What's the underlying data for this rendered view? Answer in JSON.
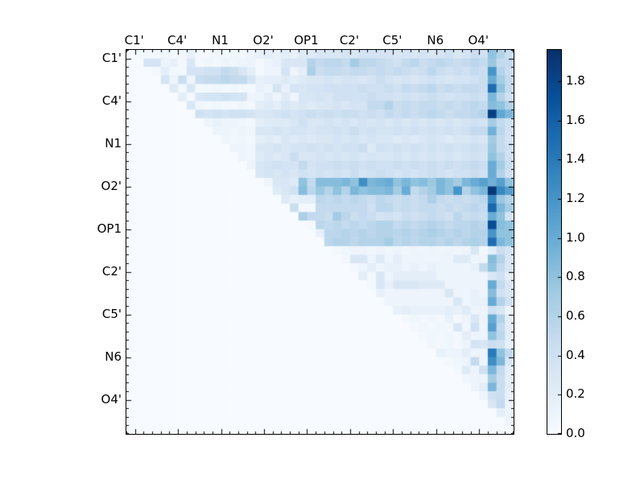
{
  "figure": {
    "kind": "matplotlib-style heatmap figure",
    "background": "#ffffff",
    "axes_border_color": "#000000",
    "text_color": "#000000"
  },
  "chart_data": {
    "type": "heatmap",
    "title": "",
    "xlabel": "",
    "ylabel": "",
    "n": 45,
    "group_size": 5,
    "x_tick_labels": [
      "C1'",
      "C4'",
      "N1",
      "O2'",
      "OP1",
      "C2'",
      "C5'",
      "N6",
      "O4'"
    ],
    "y_tick_labels": [
      "C1'",
      "C4'",
      "N1",
      "O2'",
      "OP1",
      "C2'",
      "C5'",
      "N6",
      "O4'"
    ],
    "major_tick_positions": [
      1,
      6,
      11,
      16,
      21,
      26,
      31,
      36,
      41
    ],
    "colormap": "Blues",
    "vmin": 0.0,
    "vmax": 1.96,
    "colorbar_ticks": [
      0.0,
      0.2,
      0.4,
      0.6,
      0.8,
      1.0,
      1.2,
      1.4,
      1.6,
      1.8
    ],
    "matrix_shape": "upper-triangular; diagonal and lower triangle are 0",
    "matrix_encoding": "upper_triangle_rows[i] lists values for row i, columns i+1 through 44; all other cells are 0",
    "upper_triangle_rows": [
      [
        0.05,
        0.05,
        0.05,
        0.08,
        0.05,
        0.08,
        0.15,
        0.05,
        0.05,
        0.08,
        0.05,
        0.08,
        0.05,
        0.1,
        0.15,
        0.2,
        0.15,
        0.2,
        0.15,
        0.25,
        0.25,
        0.3,
        0.3,
        0.3,
        0.35,
        0.3,
        0.35,
        0.35,
        0.35,
        0.35,
        0.3,
        0.35,
        0.3,
        0.35,
        0.3,
        0.35,
        0.4,
        0.3,
        0.35,
        0.45,
        0.4,
        0.8,
        0.6,
        0.45
      ],
      [
        0.35,
        0.35,
        0.1,
        0.15,
        0.05,
        0.3,
        0.05,
        0.08,
        0.05,
        0.1,
        0.08,
        0.1,
        0.1,
        0.05,
        0.1,
        0.15,
        0.3,
        0.3,
        0.3,
        0.6,
        0.5,
        0.55,
        0.55,
        0.5,
        0.7,
        0.55,
        0.55,
        0.5,
        0.45,
        0.4,
        0.5,
        0.55,
        0.45,
        0.5,
        0.55,
        0.5,
        0.45,
        0.5,
        0.55,
        0.5,
        0.75,
        0.5,
        0.5
      ],
      [
        0.05,
        0.2,
        0.05,
        0.05,
        0.35,
        0.35,
        0.4,
        0.4,
        0.5,
        0.45,
        0.3,
        0.2,
        0.05,
        0.1,
        0.1,
        0.35,
        0.1,
        0.2,
        0.65,
        0.45,
        0.5,
        0.5,
        0.45,
        0.5,
        0.5,
        0.45,
        0.5,
        0.45,
        0.5,
        0.45,
        0.4,
        0.45,
        0.55,
        0.45,
        0.4,
        0.45,
        0.4,
        0.5,
        0.45,
        1.2,
        0.6,
        0.45
      ],
      [
        0.35,
        0.1,
        0.45,
        0.1,
        0.45,
        0.5,
        0.5,
        0.55,
        0.5,
        0.5,
        0.35,
        0.15,
        0.2,
        0.2,
        0.25,
        0.2,
        0.25,
        0.3,
        0.3,
        0.35,
        0.3,
        0.35,
        0.35,
        0.3,
        0.35,
        0.45,
        0.35,
        0.3,
        0.35,
        0.3,
        0.35,
        0.4,
        0.35,
        0.3,
        0.35,
        0.35,
        0.4,
        0.45,
        1.0,
        0.7,
        0.5
      ],
      [
        0.25,
        0.05,
        0.3,
        0.05,
        0.05,
        0.08,
        0.05,
        0.08,
        0.05,
        0.05,
        0.15,
        0.1,
        0.35,
        0.15,
        0.35,
        0.3,
        0.35,
        0.35,
        0.4,
        0.4,
        0.4,
        0.4,
        0.45,
        0.4,
        0.4,
        0.45,
        0.4,
        0.5,
        0.45,
        0.5,
        0.55,
        0.45,
        0.5,
        0.45,
        0.5,
        0.5,
        0.45,
        1.5,
        0.8,
        0.5
      ],
      [
        0.2,
        0.05,
        0.3,
        0.35,
        0.35,
        0.4,
        0.35,
        0.35,
        0.1,
        0.1,
        0.2,
        0.1,
        0.25,
        0.1,
        0.3,
        0.3,
        0.35,
        0.3,
        0.4,
        0.4,
        0.4,
        0.4,
        0.45,
        0.4,
        0.4,
        0.35,
        0.4,
        0.35,
        0.4,
        0.45,
        0.4,
        0.35,
        0.4,
        0.4,
        0.45,
        0.4,
        0.9,
        0.6,
        0.4
      ],
      [
        0.3,
        0.08,
        0.05,
        0.08,
        0.05,
        0.05,
        0.08,
        0.05,
        0.2,
        0.25,
        0.2,
        0.3,
        0.25,
        0.3,
        0.25,
        0.3,
        0.3,
        0.35,
        0.3,
        0.35,
        0.35,
        0.5,
        0.5,
        0.6,
        0.45,
        0.5,
        0.45,
        0.5,
        0.5,
        0.45,
        0.5,
        0.45,
        0.5,
        0.55,
        0.5,
        0.85,
        0.8,
        0.6
      ],
      [
        0.4,
        0.35,
        0.4,
        0.35,
        0.4,
        0.4,
        0.35,
        0.3,
        0.3,
        0.35,
        0.4,
        0.35,
        0.4,
        0.45,
        0.4,
        0.45,
        0.4,
        0.45,
        0.45,
        0.4,
        0.45,
        0.4,
        0.5,
        0.45,
        0.5,
        0.45,
        0.5,
        0.55,
        0.5,
        0.45,
        0.5,
        0.5,
        0.55,
        0.6,
        1.85,
        1.05,
        0.9
      ],
      [
        0.1,
        0.15,
        0.1,
        0.1,
        0.08,
        0.05,
        0.2,
        0.25,
        0.25,
        0.25,
        0.3,
        0.4,
        0.3,
        0.3,
        0.35,
        0.3,
        0.35,
        0.3,
        0.35,
        0.3,
        0.35,
        0.3,
        0.35,
        0.3,
        0.35,
        0.3,
        0.35,
        0.3,
        0.35,
        0.3,
        0.35,
        0.4,
        0.35,
        0.7,
        0.5,
        0.4
      ],
      [
        0.1,
        0.1,
        0.08,
        0.1,
        0.08,
        0.3,
        0.3,
        0.35,
        0.3,
        0.35,
        0.35,
        0.3,
        0.35,
        0.35,
        0.4,
        0.35,
        0.45,
        0.35,
        0.4,
        0.35,
        0.35,
        0.4,
        0.35,
        0.4,
        0.35,
        0.4,
        0.35,
        0.4,
        0.35,
        0.4,
        0.5,
        0.5,
        0.95,
        0.55,
        0.4
      ],
      [
        0.08,
        0.05,
        0.08,
        0.05,
        0.2,
        0.25,
        0.2,
        0.3,
        0.25,
        0.3,
        0.25,
        0.3,
        0.3,
        0.35,
        0.3,
        0.35,
        0.3,
        0.35,
        0.3,
        0.3,
        0.25,
        0.3,
        0.25,
        0.3,
        0.35,
        0.3,
        0.25,
        0.3,
        0.3,
        0.35,
        0.3,
        0.7,
        0.5,
        0.35
      ],
      [
        0.1,
        0.1,
        0.08,
        0.3,
        0.3,
        0.35,
        0.3,
        0.35,
        0.35,
        0.4,
        0.35,
        0.4,
        0.35,
        0.4,
        0.4,
        0.45,
        0.25,
        0.4,
        0.35,
        0.4,
        0.35,
        0.4,
        0.35,
        0.4,
        0.35,
        0.4,
        0.35,
        0.4,
        0.45,
        0.4,
        0.75,
        0.5,
        0.4
      ],
      [
        0.1,
        0.08,
        0.25,
        0.3,
        0.25,
        0.3,
        0.45,
        0.3,
        0.3,
        0.35,
        0.3,
        0.35,
        0.3,
        0.35,
        0.3,
        0.35,
        0.3,
        0.3,
        0.35,
        0.3,
        0.35,
        0.3,
        0.35,
        0.3,
        0.35,
        0.3,
        0.35,
        0.4,
        0.35,
        0.8,
        0.6,
        0.4
      ],
      [
        0.1,
        0.3,
        0.35,
        0.4,
        0.35,
        0.35,
        0.5,
        0.35,
        0.4,
        0.4,
        0.45,
        0.4,
        0.45,
        0.4,
        0.45,
        0.4,
        0.4,
        0.45,
        0.4,
        0.45,
        0.4,
        0.45,
        0.4,
        0.45,
        0.4,
        0.45,
        0.5,
        0.45,
        1.0,
        0.7,
        0.45
      ],
      [
        0.3,
        0.35,
        0.3,
        0.35,
        0.3,
        0.4,
        0.35,
        0.4,
        0.35,
        0.4,
        0.35,
        0.45,
        0.35,
        0.4,
        0.45,
        0.4,
        0.35,
        0.4,
        0.35,
        0.4,
        0.45,
        0.4,
        0.35,
        0.4,
        0.4,
        0.45,
        0.4,
        1.0,
        0.6,
        0.4
      ],
      [
        0.1,
        0.3,
        0.3,
        0.25,
        0.8,
        0.5,
        0.85,
        0.85,
        0.85,
        0.9,
        0.8,
        1.25,
        0.9,
        0.95,
        1.0,
        0.8,
        0.9,
        0.8,
        0.85,
        0.75,
        0.9,
        0.8,
        0.7,
        0.9,
        1.0,
        1.1,
        0.95,
        1.1,
        0.8
      ],
      [
        0.25,
        0.3,
        0.4,
        0.85,
        0.55,
        0.75,
        0.6,
        0.8,
        0.6,
        0.9,
        0.8,
        0.85,
        0.85,
        0.9,
        0.7,
        1.0,
        0.5,
        0.6,
        0.7,
        0.9,
        0.8,
        1.2,
        0.6,
        0.8,
        0.9,
        1.9,
        1.3,
        1.1
      ],
      [
        0.25,
        0.15,
        0.2,
        0.2,
        0.55,
        0.5,
        0.55,
        0.5,
        0.55,
        0.5,
        0.45,
        0.55,
        0.5,
        0.45,
        0.5,
        0.45,
        0.5,
        0.65,
        0.5,
        0.45,
        0.5,
        0.45,
        0.5,
        0.55,
        1.3,
        0.75,
        0.6
      ],
      [
        0.45,
        0.05,
        0.05,
        0.5,
        0.5,
        0.5,
        0.5,
        0.5,
        0.5,
        0.4,
        0.55,
        0.55,
        0.45,
        0.5,
        0.45,
        0.5,
        0.5,
        0.45,
        0.5,
        0.45,
        0.5,
        0.55,
        0.5,
        1.55,
        0.9,
        0.7
      ],
      [
        0.65,
        0.5,
        0.5,
        0.45,
        0.7,
        0.55,
        0.45,
        0.5,
        0.45,
        0.35,
        0.4,
        0.35,
        0.45,
        0.4,
        0.45,
        0.5,
        0.45,
        0.4,
        0.55,
        0.45,
        0.5,
        0.45,
        1.0,
        0.8,
        0.35
      ],
      [
        0.05,
        0.55,
        0.5,
        0.55,
        0.5,
        0.55,
        0.5,
        0.55,
        0.6,
        0.6,
        0.5,
        0.55,
        0.5,
        0.55,
        0.6,
        0.55,
        0.5,
        0.55,
        0.55,
        0.6,
        0.55,
        1.75,
        0.85,
        0.8
      ],
      [
        0.15,
        0.55,
        0.55,
        0.6,
        0.55,
        0.6,
        0.55,
        0.6,
        0.6,
        0.55,
        0.6,
        0.55,
        0.6,
        0.65,
        0.6,
        0.55,
        0.6,
        0.55,
        0.6,
        0.6,
        1.2,
        0.8,
        0.8
      ],
      [
        0.55,
        0.6,
        0.6,
        0.55,
        0.6,
        0.6,
        0.6,
        0.7,
        0.55,
        0.6,
        0.55,
        0.6,
        0.6,
        0.55,
        0.6,
        0.55,
        0.6,
        0.65,
        0.6,
        1.5,
        0.9,
        0.8
      ],
      [
        0.05,
        0.08,
        0.1,
        0.1,
        0.08,
        0.1,
        0.08,
        0.1,
        0.08,
        0.1,
        0.08,
        0.1,
        0.08,
        0.1,
        0.08,
        0.1,
        0.3,
        0.05,
        0.2,
        0.45,
        0.35
      ],
      [
        0.05,
        0.3,
        0.3,
        0.1,
        0.25,
        0.1,
        0.2,
        0.1,
        0.1,
        0.1,
        0.1,
        0.1,
        0.1,
        0.25,
        0.25,
        0.1,
        0.1,
        0.85,
        0.6,
        0.3
      ],
      [
        0.05,
        0.1,
        0.2,
        0.1,
        0.15,
        0.15,
        0.1,
        0.15,
        0.1,
        0.15,
        0.1,
        0.1,
        0.1,
        0.1,
        0.15,
        0.5,
        0.8,
        0.5,
        0.3
      ],
      [
        0.2,
        0.05,
        0.3,
        0.1,
        0.2,
        0.2,
        0.2,
        0.2,
        0.2,
        0.1,
        0.1,
        0.1,
        0.1,
        0.1,
        0.1,
        0.3,
        0.4,
        0.2
      ],
      [
        0.05,
        0.3,
        0.15,
        0.3,
        0.3,
        0.3,
        0.25,
        0.25,
        0.25,
        0.1,
        0.1,
        0.1,
        0.1,
        0.1,
        1.0,
        0.5,
        0.3
      ],
      [
        0.15,
        0.1,
        0.1,
        0.1,
        0.1,
        0.1,
        0.1,
        0.1,
        0.3,
        0.1,
        0.1,
        0.15,
        0.1,
        0.85,
        0.4,
        0.3
      ],
      [
        0.1,
        0.1,
        0.1,
        0.1,
        0.1,
        0.1,
        0.1,
        0.1,
        0.3,
        0.1,
        0.15,
        0.15,
        1.0,
        0.6,
        0.4
      ],
      [
        0.15,
        0.2,
        0.15,
        0.15,
        0.15,
        0.15,
        0.2,
        0.15,
        0.25,
        0.1,
        0.1,
        0.4,
        0.3,
        0.1
      ],
      [
        0.05,
        0.08,
        0.05,
        0.08,
        0.05,
        0.15,
        0.05,
        0.1,
        0.3,
        0.1,
        1.0,
        0.6,
        0.2
      ],
      [
        0.05,
        0.08,
        0.05,
        0.08,
        0.05,
        0.3,
        0.08,
        0.4,
        0.1,
        1.1,
        0.5,
        0.2
      ],
      [
        0.05,
        0.08,
        0.05,
        0.08,
        0.05,
        0.2,
        0.1,
        0.1,
        0.8,
        0.55,
        0.2
      ],
      [
        0.08,
        0.05,
        0.08,
        0.05,
        0.1,
        0.35,
        0.3,
        0.45,
        0.4,
        0.15
      ],
      [
        0.15,
        0.1,
        0.1,
        0.2,
        0.1,
        0.1,
        1.4,
        0.8,
        0.5
      ],
      [
        0.05,
        0.08,
        0.1,
        0.5,
        0.1,
        1.25,
        0.9,
        0.3
      ],
      [
        0.05,
        0.25,
        0.1,
        0.4,
        0.9,
        0.5,
        0.2
      ],
      [
        0.08,
        0.1,
        0.1,
        0.7,
        0.45,
        0.2
      ],
      [
        0.1,
        0.2,
        0.9,
        0.45,
        0.2
      ],
      [
        0.1,
        0.4,
        0.45,
        0.15
      ],
      [
        0.3,
        0.5,
        0.1
      ],
      [
        0.2,
        0.1
      ],
      [
        0.1
      ],
      []
    ]
  },
  "colors": {
    "colormap_anchors": [
      "#f7fbff",
      "#deebf7",
      "#c6dbef",
      "#9ecae1",
      "#6baed6",
      "#4292c6",
      "#2171b5",
      "#08519c",
      "#08306b"
    ],
    "axes_border": "#000000",
    "tick_color": "#000000",
    "label_color": "#000000",
    "figure_background": "#ffffff"
  }
}
